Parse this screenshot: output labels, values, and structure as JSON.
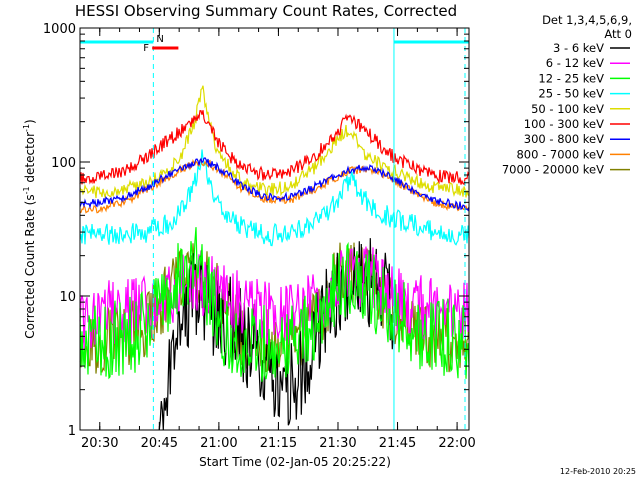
{
  "chart_data": {
    "type": "line",
    "title": "HESSI Observing Summary Count Rates, Corrected",
    "xlabel": "Start Time (02-Jan-05 20:25:22)",
    "ylabel": "Corrected Count Rate (s",
    "ylabel_sup1": "-1",
    "ylabel_mid": " detector",
    "ylabel_sup2": "-1",
    "ylabel_end": ")",
    "xlim_minutes": [
      20.417,
      22.05
    ],
    "ylim": [
      1,
      1000
    ],
    "yscale": "log",
    "x_ticks": [
      "20:30",
      "20:45",
      "21:00",
      "21:15",
      "21:30",
      "21:45",
      "22:00"
    ],
    "x_tick_values_hours": [
      20.5,
      20.75,
      21.0,
      21.25,
      21.5,
      21.75,
      22.0
    ],
    "y_ticks": [
      "1",
      "10",
      "100",
      "1000"
    ],
    "y_tick_values": [
      1,
      10,
      100,
      1000
    ],
    "legend_header": [
      "Det 1,3,4,5,6,9,",
      "Att 0"
    ],
    "legend_position": "right-outside",
    "annotations": {
      "flag_F": "F",
      "flag_N": "N",
      "night_intervals_hours": [
        [
          20.417,
          20.725
        ],
        [
          21.735,
          22.05
        ]
      ],
      "flare_bar_hours": [
        20.72,
        20.83
      ]
    },
    "footer_date": "12-Feb-2010 20:25",
    "series": [
      {
        "name": "3 - 6 keV",
        "color": "#000000",
        "points": [
          [
            20.75,
            1
          ],
          [
            20.8,
            2.5
          ],
          [
            20.85,
            8
          ],
          [
            20.9,
            11
          ],
          [
            20.95,
            10
          ],
          [
            21.0,
            6
          ],
          [
            21.05,
            7
          ],
          [
            21.1,
            5
          ],
          [
            21.15,
            4
          ],
          [
            21.2,
            3
          ],
          [
            21.25,
            2.2
          ],
          [
            21.3,
            2.0
          ],
          [
            21.35,
            3
          ],
          [
            21.4,
            5
          ],
          [
            21.45,
            8
          ],
          [
            21.5,
            10
          ],
          [
            21.55,
            12
          ],
          [
            21.6,
            13
          ],
          [
            21.65,
            12
          ],
          [
            21.7,
            10
          ],
          [
            21.735,
            8
          ]
        ]
      },
      {
        "name": "6 - 12 keV",
        "color": "#ff00ff",
        "points": [
          [
            20.417,
            7
          ],
          [
            20.5,
            7.5
          ],
          [
            20.6,
            7.5
          ],
          [
            20.7,
            8
          ],
          [
            20.8,
            10
          ],
          [
            20.85,
            12
          ],
          [
            20.9,
            13
          ],
          [
            20.95,
            12
          ],
          [
            21.0,
            11
          ],
          [
            21.05,
            10
          ],
          [
            21.1,
            8.5
          ],
          [
            21.2,
            7.5
          ],
          [
            21.3,
            7.5
          ],
          [
            21.4,
            8.5
          ],
          [
            21.5,
            12
          ],
          [
            21.55,
            14
          ],
          [
            21.6,
            14
          ],
          [
            21.65,
            13
          ],
          [
            21.7,
            11
          ],
          [
            21.8,
            8.5
          ],
          [
            21.9,
            8
          ],
          [
            22.05,
            7.5
          ]
        ]
      },
      {
        "name": "12 - 25 keV",
        "color": "#00ff00",
        "points": [
          [
            20.417,
            4.5
          ],
          [
            20.5,
            4.8
          ],
          [
            20.6,
            5
          ],
          [
            20.7,
            5.5
          ],
          [
            20.78,
            10
          ],
          [
            20.85,
            14
          ],
          [
            20.9,
            20
          ],
          [
            20.93,
            14
          ],
          [
            20.97,
            10
          ],
          [
            21.0,
            6
          ],
          [
            21.05,
            5
          ],
          [
            21.1,
            4.5
          ],
          [
            21.2,
            4.5
          ],
          [
            21.3,
            4.5
          ],
          [
            21.4,
            6
          ],
          [
            21.45,
            9
          ],
          [
            21.5,
            12
          ],
          [
            21.55,
            14
          ],
          [
            21.6,
            13
          ],
          [
            21.65,
            11
          ],
          [
            21.7,
            8
          ],
          [
            21.8,
            6
          ],
          [
            21.9,
            5
          ],
          [
            22.05,
            4.5
          ]
        ]
      },
      {
        "name": "25 - 50 keV",
        "color": "#00ffff",
        "points": [
          [
            20.417,
            29
          ],
          [
            20.5,
            29
          ],
          [
            20.6,
            29
          ],
          [
            20.7,
            30
          ],
          [
            20.8,
            35
          ],
          [
            20.85,
            45
          ],
          [
            20.9,
            70
          ],
          [
            20.93,
            115
          ],
          [
            20.96,
            70
          ],
          [
            21.0,
            45
          ],
          [
            21.05,
            38
          ],
          [
            21.1,
            32
          ],
          [
            21.2,
            28
          ],
          [
            21.3,
            30
          ],
          [
            21.4,
            35
          ],
          [
            21.5,
            50
          ],
          [
            21.55,
            75
          ],
          [
            21.6,
            55
          ],
          [
            21.65,
            45
          ],
          [
            21.7,
            40
          ],
          [
            21.8,
            35
          ],
          [
            21.9,
            30
          ],
          [
            22.05,
            28
          ]
        ]
      },
      {
        "name": "50 - 100 keV",
        "color": "#dddd00",
        "points": [
          [
            20.417,
            60
          ],
          [
            20.5,
            60
          ],
          [
            20.6,
            62
          ],
          [
            20.7,
            70
          ],
          [
            20.8,
            90
          ],
          [
            20.85,
            120
          ],
          [
            20.9,
            200
          ],
          [
            20.93,
            370
          ],
          [
            20.96,
            200
          ],
          [
            21.0,
            110
          ],
          [
            21.05,
            90
          ],
          [
            21.1,
            70
          ],
          [
            21.2,
            62
          ],
          [
            21.3,
            65
          ],
          [
            21.4,
            90
          ],
          [
            21.5,
            150
          ],
          [
            21.55,
            180
          ],
          [
            21.6,
            120
          ],
          [
            21.65,
            105
          ],
          [
            21.7,
            90
          ],
          [
            21.8,
            75
          ],
          [
            21.9,
            65
          ],
          [
            22.05,
            60
          ]
        ]
      },
      {
        "name": "100 - 300 keV",
        "color": "#ff0000",
        "points": [
          [
            20.417,
            75
          ],
          [
            20.5,
            78
          ],
          [
            20.6,
            85
          ],
          [
            20.7,
            110
          ],
          [
            20.8,
            150
          ],
          [
            20.85,
            175
          ],
          [
            20.9,
            200
          ],
          [
            20.93,
            240
          ],
          [
            20.96,
            190
          ],
          [
            21.0,
            140
          ],
          [
            21.05,
            110
          ],
          [
            21.1,
            90
          ],
          [
            21.2,
            80
          ],
          [
            21.3,
            85
          ],
          [
            21.4,
            110
          ],
          [
            21.5,
            170
          ],
          [
            21.55,
            220
          ],
          [
            21.6,
            180
          ],
          [
            21.65,
            150
          ],
          [
            21.7,
            120
          ],
          [
            21.8,
            95
          ],
          [
            21.9,
            80
          ],
          [
            22.05,
            75
          ]
        ]
      },
      {
        "name": "300 - 800 keV",
        "color": "#0000ff",
        "points": [
          [
            20.417,
            48
          ],
          [
            20.5,
            50
          ],
          [
            20.6,
            55
          ],
          [
            20.7,
            65
          ],
          [
            20.8,
            82
          ],
          [
            20.85,
            92
          ],
          [
            20.9,
            100
          ],
          [
            20.93,
            102
          ],
          [
            20.96,
            98
          ],
          [
            21.0,
            90
          ],
          [
            21.05,
            78
          ],
          [
            21.1,
            65
          ],
          [
            21.2,
            55
          ],
          [
            21.3,
            55
          ],
          [
            21.4,
            65
          ],
          [
            21.5,
            80
          ],
          [
            21.55,
            88
          ],
          [
            21.6,
            90
          ],
          [
            21.65,
            88
          ],
          [
            21.7,
            80
          ],
          [
            21.8,
            65
          ],
          [
            21.9,
            52
          ],
          [
            22.05,
            46
          ]
        ]
      },
      {
        "name": "800 - 7000 keV",
        "color": "#ff8000",
        "points": [
          [
            20.417,
            44
          ],
          [
            20.5,
            45
          ],
          [
            20.6,
            50
          ],
          [
            20.7,
            62
          ],
          [
            20.8,
            80
          ],
          [
            20.85,
            90
          ],
          [
            20.9,
            98
          ],
          [
            20.93,
            100
          ],
          [
            20.96,
            96
          ],
          [
            21.0,
            88
          ],
          [
            21.05,
            75
          ],
          [
            21.1,
            62
          ],
          [
            21.2,
            52
          ],
          [
            21.3,
            52
          ],
          [
            21.4,
            62
          ],
          [
            21.5,
            78
          ],
          [
            21.55,
            86
          ],
          [
            21.6,
            88
          ],
          [
            21.65,
            86
          ],
          [
            21.7,
            78
          ],
          [
            21.8,
            62
          ],
          [
            21.9,
            50
          ],
          [
            22.05,
            44
          ]
        ]
      },
      {
        "name": "7000 - 20000 keV",
        "color": "#808000",
        "points": [
          [
            20.417,
            4.5
          ],
          [
            20.5,
            4.5
          ],
          [
            20.6,
            5
          ],
          [
            20.7,
            6
          ],
          [
            20.78,
            10
          ],
          [
            20.85,
            13
          ],
          [
            20.9,
            15
          ],
          [
            20.95,
            14
          ],
          [
            21.0,
            10
          ],
          [
            21.05,
            7
          ],
          [
            21.1,
            5
          ],
          [
            21.2,
            4.5
          ],
          [
            21.3,
            4.8
          ],
          [
            21.4,
            6
          ],
          [
            21.45,
            9
          ],
          [
            21.5,
            14
          ],
          [
            21.55,
            15
          ],
          [
            21.6,
            15
          ],
          [
            21.65,
            13
          ],
          [
            21.7,
            9
          ],
          [
            21.8,
            6
          ],
          [
            21.9,
            5
          ],
          [
            22.05,
            4.5
          ]
        ]
      }
    ]
  }
}
